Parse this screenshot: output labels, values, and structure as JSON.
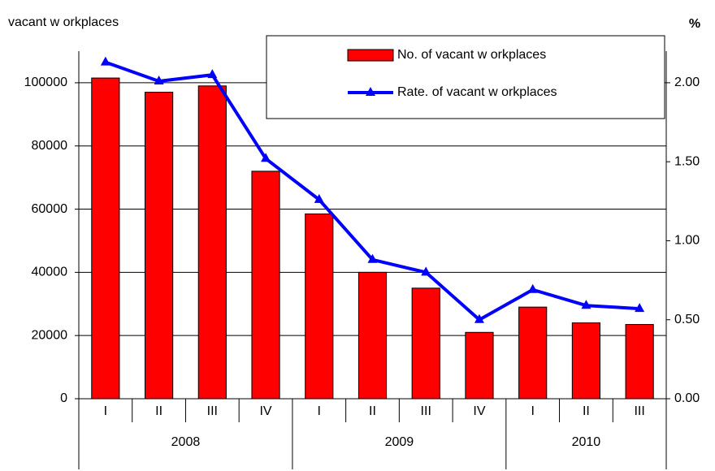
{
  "chart_data": {
    "type": "bar-line",
    "y_label": "vacant w orkplaces",
    "y2_label": "%",
    "categories": [
      "I",
      "II",
      "III",
      "IV",
      "I",
      "II",
      "III",
      "IV",
      "I",
      "II",
      "III"
    ],
    "groups": [
      "2008",
      "2009",
      "2010"
    ],
    "series": [
      {
        "name": "No. of vacant w orkplaces",
        "type": "bar",
        "color": "#ff0000",
        "values": [
          101500,
          97000,
          99000,
          72000,
          58500,
          40000,
          35000,
          21000,
          29000,
          24000,
          23500
        ]
      },
      {
        "name": "Rate. of vacant w orkplaces",
        "type": "line",
        "color": "#0000ff",
        "axis": "y2",
        "values": [
          2.13,
          2.01,
          2.05,
          1.52,
          1.26,
          0.88,
          0.8,
          0.5,
          0.69,
          0.59,
          0.57
        ]
      }
    ],
    "ylim": [
      0,
      110000
    ],
    "yticks": [
      0,
      20000,
      40000,
      60000,
      80000,
      100000
    ],
    "y2lim": [
      0,
      2.2
    ],
    "y2ticks": [
      {
        "value": 0,
        "label": "0.00"
      },
      {
        "value": 0.5,
        "label": "0.50"
      },
      {
        "value": 1,
        "label": "1.00"
      },
      {
        "value": 1.5,
        "label": "1.50"
      },
      {
        "value": 2,
        "label": "2.00"
      }
    ],
    "grid": true
  }
}
